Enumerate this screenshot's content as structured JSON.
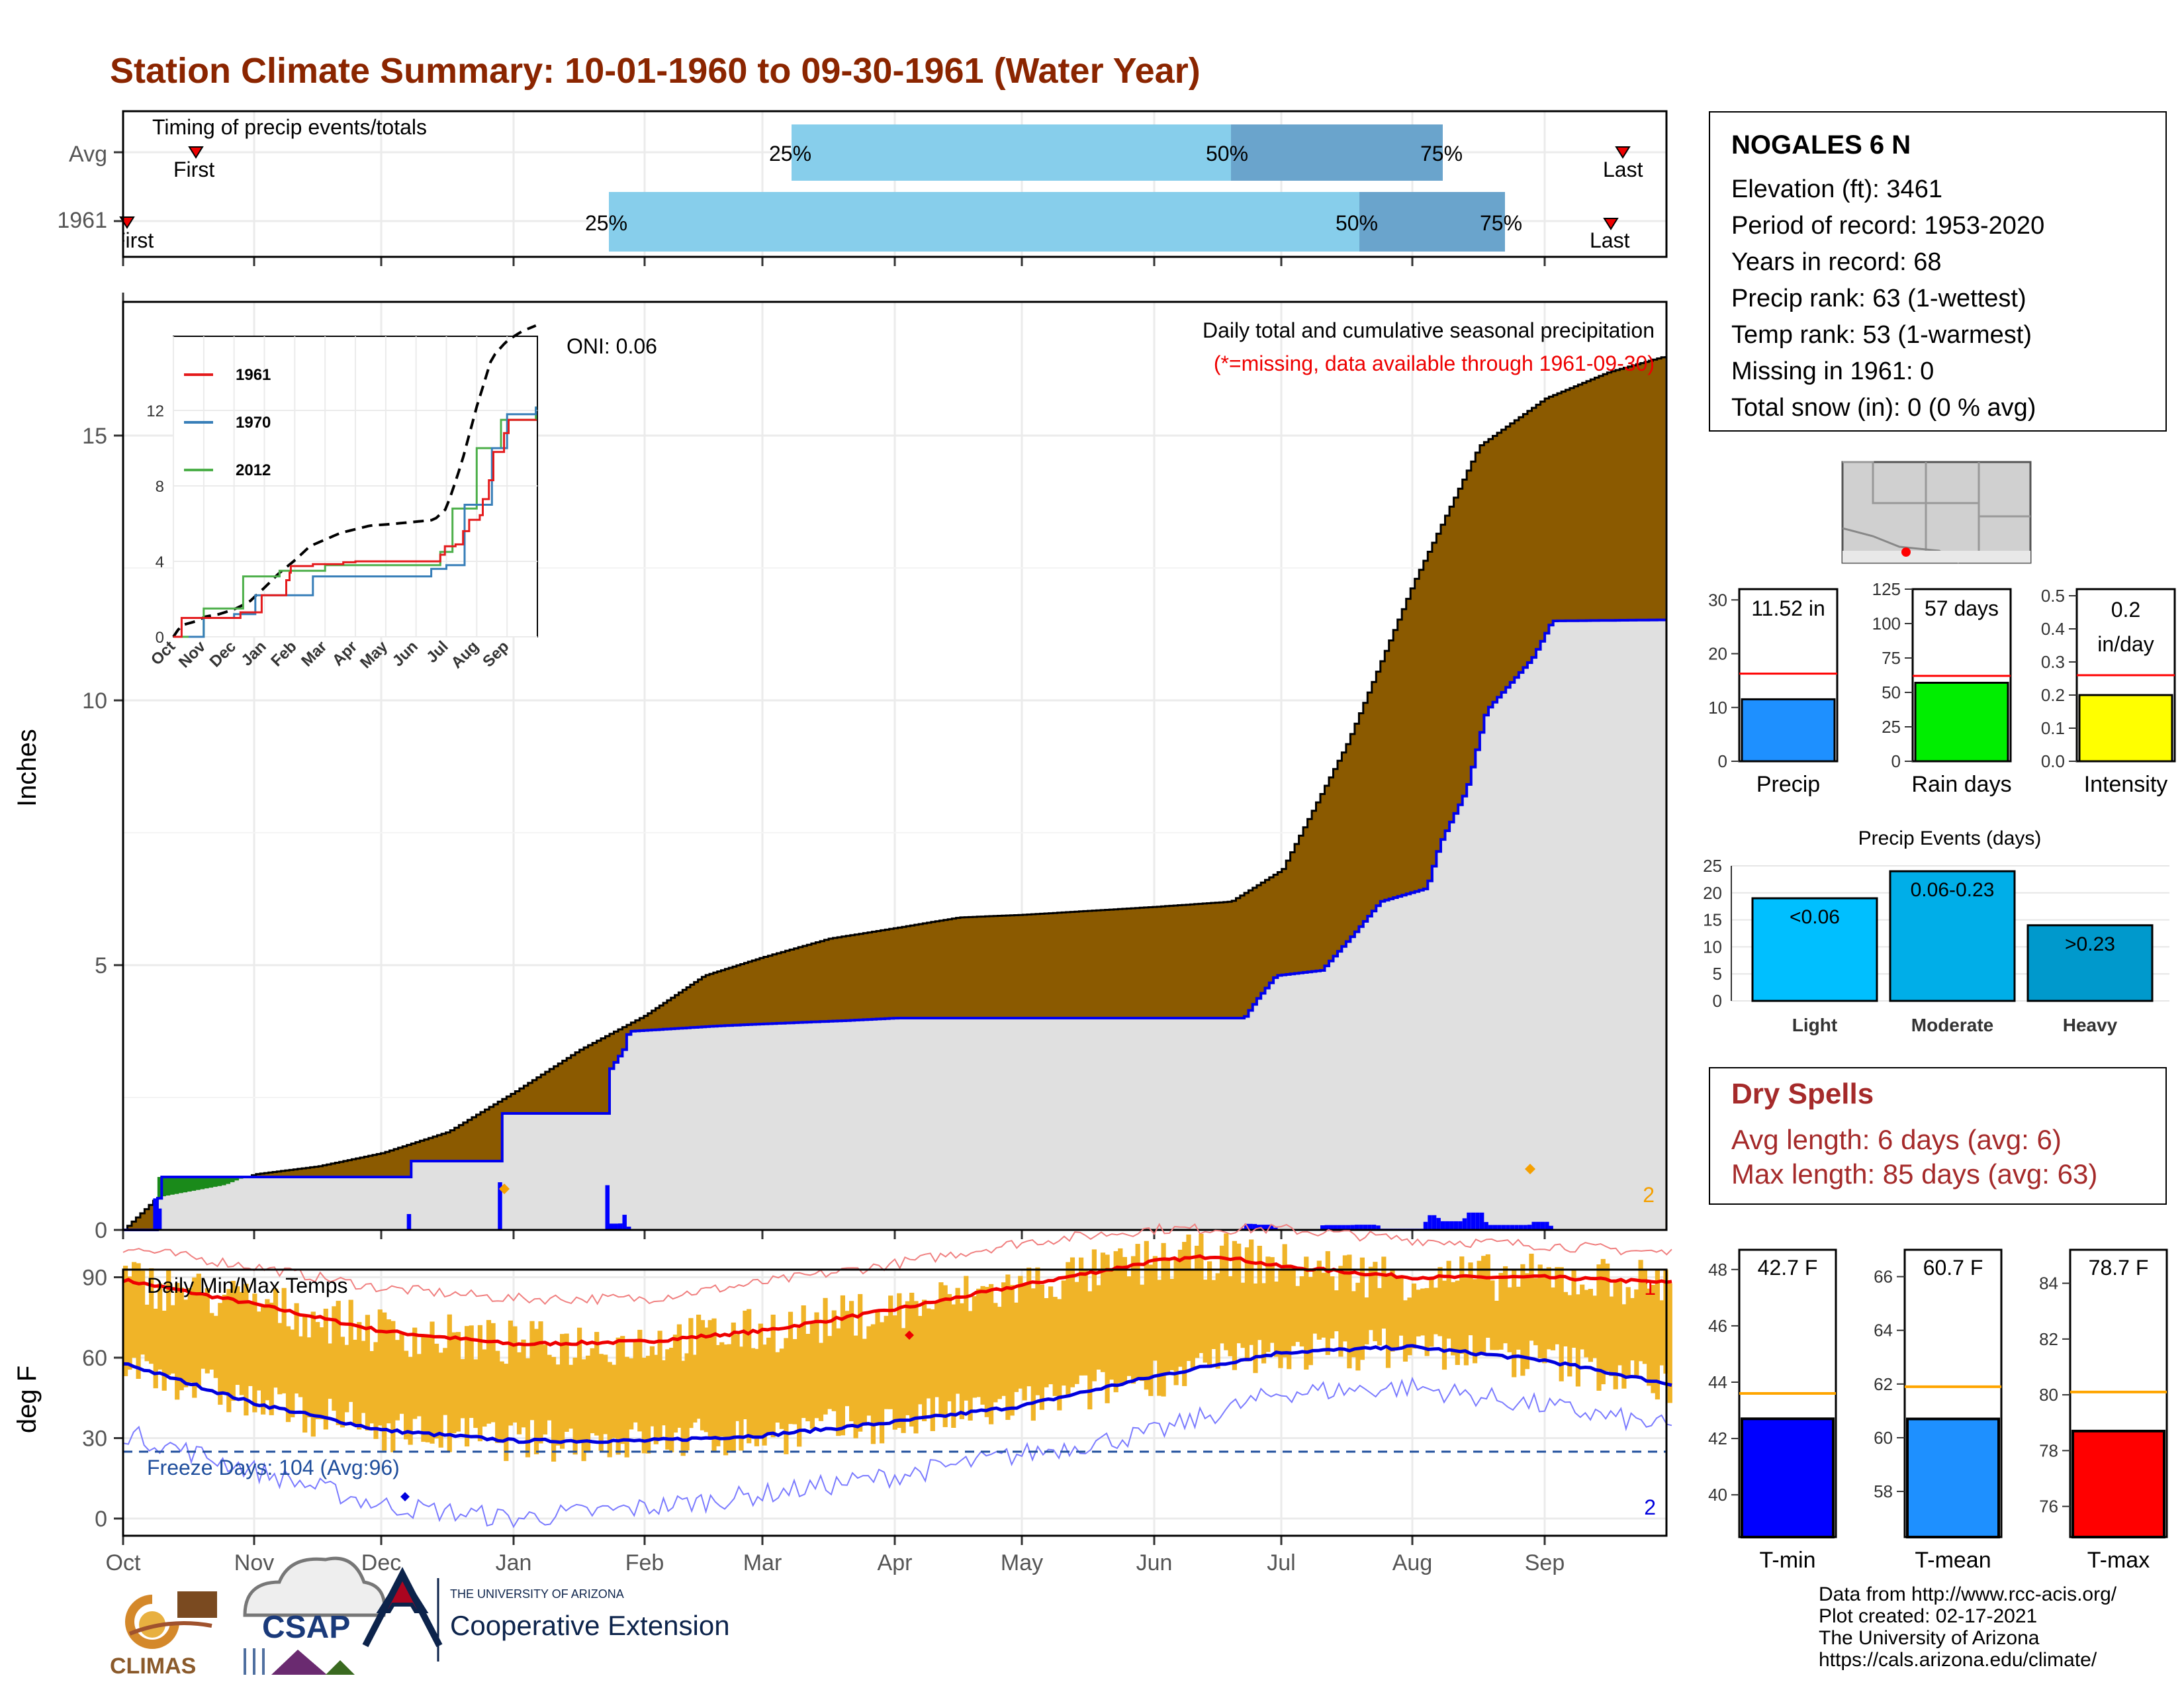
{
  "title": "Station Climate Summary: 10-01-1960 to 09-30-1961 (Water Year)",
  "months": [
    "Oct",
    "Nov",
    "Dec",
    "Jan",
    "Feb",
    "Mar",
    "Apr",
    "May",
    "Jun",
    "Jul",
    "Aug",
    "Sep"
  ],
  "timing": {
    "label": "Timing of precip events/totals",
    "rows": [
      "Avg",
      "1961"
    ],
    "avg": {
      "first_label": "First",
      "last_label": "Last",
      "p25": "25%",
      "p50": "50%",
      "p75": "75%"
    },
    "y1961": {
      "first_label": "First",
      "last_label": "Last",
      "p25": "25%",
      "p50": "50%",
      "p75": "75%"
    }
  },
  "precip_panel": {
    "ylabel": "Inches",
    "yticks": [
      "0",
      "5",
      "10",
      "15"
    ],
    "header": "Daily total and cumulative seasonal precipitation",
    "missing_note": "(*=missing, data available through 1961-09-30)",
    "oni": "ONI: 0.06",
    "rank_marker": "2"
  },
  "inset": {
    "yticks": [
      "0",
      "4",
      "8",
      "12"
    ],
    "months": [
      "Oct",
      "Nov",
      "Dec",
      "Jan",
      "Feb",
      "Mar",
      "Apr",
      "May",
      "Jun",
      "Jul",
      "Aug",
      "Sep"
    ],
    "legend": [
      {
        "name": "1961",
        "color": "#e41a1c"
      },
      {
        "name": "1970",
        "color": "#377eb8"
      },
      {
        "name": "2012",
        "color": "#4daf4a"
      }
    ]
  },
  "temp_panel": {
    "ylabel": "deg F",
    "label": "Daily Min/Max Temps",
    "yticks": [
      "0",
      "30",
      "60",
      "90"
    ],
    "freeze": "Freeze Days: 104 (Avg:96)",
    "rank_max": "1",
    "rank_min": "2"
  },
  "station": {
    "name": "NOGALES 6 N",
    "lines": [
      "Elevation (ft): 3461",
      "Period of record: 1953-2020",
      "Years in record: 68",
      "Precip rank: 63 (1-wettest)",
      "Temp rank: 53 (1-warmest)",
      "Missing in 1961: 0",
      "Total snow (in): 0 (0 % avg)"
    ]
  },
  "mini_bars": [
    {
      "label": "Precip",
      "value_text": "11.52 in",
      "value": 11.52,
      "avg": 16.3,
      "ymax": 32,
      "ticks": [
        "0",
        "10",
        "20",
        "30"
      ],
      "color": "#1e90ff"
    },
    {
      "label": "Rain days",
      "value_text": "57 days",
      "value": 57,
      "avg": 62,
      "ymax": 125,
      "ticks": [
        "0",
        "25",
        "50",
        "75",
        "100",
        "125"
      ],
      "color": "#00ee00"
    },
    {
      "label": "Intensity",
      "value_text_1": "0.2",
      "value_text_2": "in/day",
      "value": 0.2,
      "avg": 0.26,
      "ymax": 0.52,
      "ticks": [
        "0.0",
        "0.1",
        "0.2",
        "0.3",
        "0.4",
        "0.5"
      ],
      "color": "#ffff00"
    }
  ],
  "events": {
    "title": "Precip Events (days)",
    "ticks": [
      "0",
      "5",
      "10",
      "15",
      "20",
      "25"
    ],
    "bars": [
      {
        "cat": "Light",
        "label": "<0.06",
        "value": 19,
        "color": "#00bfff"
      },
      {
        "cat": "Moderate",
        "label": "0.06-0.23",
        "value": 24,
        "color": "#00aee8"
      },
      {
        "cat": "Heavy",
        "label": ">0.23",
        "value": 14,
        "color": "#0099cc"
      }
    ]
  },
  "dry_spells": {
    "title": "Dry Spells",
    "avg": "Avg length: 6 days (avg: 6)",
    "max": "Max length: 85 days (avg: 63)"
  },
  "temp_bars": [
    {
      "label": "T-min",
      "value_text": "42.7 F",
      "value": 42.7,
      "avg": 43.6,
      "min": 38.5,
      "max": 48.7,
      "ticks": [
        "40",
        "42",
        "44",
        "46",
        "48"
      ],
      "color": "#0000ff"
    },
    {
      "label": "T-mean",
      "value_text": "60.7 F",
      "value": 60.7,
      "avg": 61.9,
      "min": 56.3,
      "max": 67.0,
      "ticks": [
        "58",
        "60",
        "62",
        "64",
        "66"
      ],
      "color": "#1e90ff"
    },
    {
      "label": "T-max",
      "value_text": "78.7 F",
      "value": 78.7,
      "avg": 80.1,
      "min": 74.9,
      "max": 85.2,
      "ticks": [
        "76",
        "78",
        "80",
        "82",
        "84"
      ],
      "color": "#ff0000"
    }
  ],
  "logos": {
    "climas": "CLIMAS",
    "csap": "CSAP",
    "ua_small": "THE UNIVERSITY OF ARIZONA",
    "ua_big": "Cooperative Extension"
  },
  "credits": [
    "Data from http://www.rcc-acis.org/",
    "Plot created: 02-17-2021",
    "The University of Arizona",
    "https://cals.arizona.edu/climate/"
  ],
  "chart_data": [
    {
      "type": "area",
      "title": "Daily total and cumulative seasonal precipitation",
      "ylabel": "Inches",
      "ylim": [
        0,
        17.5
      ],
      "x_unit": "month of water year",
      "series": [
        {
          "name": "cumulative_avg",
          "points": [
            [
              0,
              0
            ],
            [
              0.25,
              0.6
            ],
            [
              0.8,
              0.85
            ],
            [
              1,
              1.05
            ],
            [
              1.5,
              1.2
            ],
            [
              2,
              1.45
            ],
            [
              2.5,
              1.85
            ],
            [
              3,
              2.6
            ],
            [
              3.5,
              3.4
            ],
            [
              4,
              4.05
            ],
            [
              4.5,
              4.8
            ],
            [
              5,
              5.15
            ],
            [
              5.5,
              5.5
            ],
            [
              6,
              5.7
            ],
            [
              6.5,
              5.9
            ],
            [
              7,
              5.95
            ],
            [
              8,
              6.1
            ],
            [
              8.6,
              6.2
            ],
            [
              9,
              6.8
            ],
            [
              9.5,
              9.2
            ],
            [
              10,
              12.2
            ],
            [
              10.5,
              14.8
            ],
            [
              11,
              15.7
            ],
            [
              11.5,
              16.2
            ],
            [
              11.95,
              16.5
            ]
          ]
        },
        {
          "name": "cumulative_1961",
          "points": [
            [
              0,
              0
            ],
            [
              0.25,
              0
            ],
            [
              0.27,
              1.0
            ],
            [
              2.2,
              1.0
            ],
            [
              2.21,
              1.3
            ],
            [
              2.9,
              1.3
            ],
            [
              2.91,
              2.2
            ],
            [
              3.7,
              2.2
            ],
            [
              3.72,
              3.0
            ],
            [
              3.83,
              3.4
            ],
            [
              3.87,
              3.75
            ],
            [
              4.6,
              3.85
            ],
            [
              5.6,
              3.95
            ],
            [
              6,
              4.0
            ],
            [
              8.7,
              4.0
            ],
            [
              8.8,
              4.35
            ],
            [
              8.95,
              4.8
            ],
            [
              9.3,
              4.9
            ],
            [
              9.55,
              5.6
            ],
            [
              9.75,
              6.2
            ],
            [
              10.1,
              6.45
            ],
            [
              10.2,
              7.3
            ],
            [
              10.4,
              8.3
            ],
            [
              10.55,
              9.8
            ],
            [
              10.9,
              10.8
            ],
            [
              11.05,
              11.5
            ],
            [
              11.95,
              11.52
            ]
          ]
        }
      ]
    },
    {
      "type": "line",
      "title": "Daily Min/Max Temps",
      "ylabel": "deg F",
      "ylim": [
        -7,
        112
      ],
      "series": [
        {
          "name": "avg_max",
          "points": [
            [
              0,
              89
            ],
            [
              1,
              80
            ],
            [
              2,
              70
            ],
            [
              3,
              65
            ],
            [
              4,
              66
            ],
            [
              5,
              70
            ],
            [
              6,
              78
            ],
            [
              7,
              87
            ],
            [
              8,
              96
            ],
            [
              8.5,
              98
            ],
            [
              9,
              94
            ],
            [
              10,
              90
            ],
            [
              11,
              90
            ],
            [
              12,
              88
            ]
          ]
        },
        {
          "name": "avg_min",
          "points": [
            [
              0,
              58
            ],
            [
              1,
              43
            ],
            [
              2,
              33
            ],
            [
              3,
              29
            ],
            [
              4,
              29
            ],
            [
              5,
              31
            ],
            [
              6,
              36
            ],
            [
              7,
              42
            ],
            [
              8,
              53
            ],
            [
              9,
              62
            ],
            [
              10,
              64
            ],
            [
              11,
              59
            ],
            [
              12,
              50
            ]
          ]
        },
        {
          "name": "record_high",
          "points": [
            [
              0,
              101
            ],
            [
              1,
              94
            ],
            [
              2,
              86
            ],
            [
              3,
              82
            ],
            [
              4,
              82
            ],
            [
              5,
              88
            ],
            [
              6,
              95
            ],
            [
              7,
              103
            ],
            [
              8,
              108
            ],
            [
              9,
              108
            ],
            [
              10,
              104
            ],
            [
              11,
              102
            ],
            [
              12,
              99
            ]
          ]
        },
        {
          "name": "record_low",
          "points": [
            [
              0,
              32
            ],
            [
              1,
              18
            ],
            [
              2,
              5
            ],
            [
              3,
              0
            ],
            [
              4,
              4
            ],
            [
              5,
              9
            ],
            [
              6,
              16
            ],
            [
              7,
              24
            ],
            [
              8,
              32
            ],
            [
              9,
              47
            ],
            [
              10,
              49
            ],
            [
              11,
              42
            ],
            [
              12,
              34
            ]
          ]
        }
      ]
    }
  ]
}
